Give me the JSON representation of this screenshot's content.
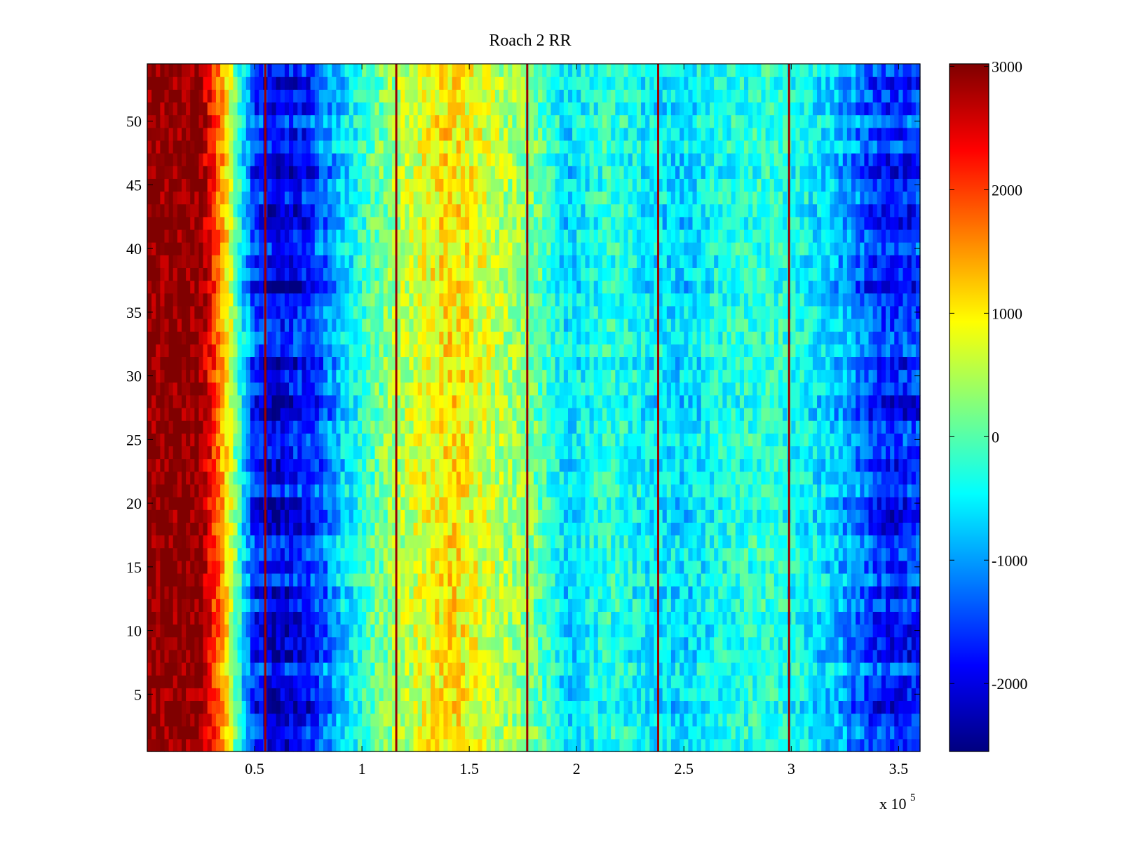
{
  "chart_data": {
    "type": "heatmap",
    "title": "Roach 2 RR",
    "xlabel": "",
    "ylabel": "",
    "x_exponent_label": "x 10",
    "x_exponent_power": "5",
    "xlim": [
      0,
      360000
    ],
    "ylim": [
      0.5,
      54.5
    ],
    "n_rows": 54,
    "x_ticks": [
      0.5,
      1,
      1.5,
      2,
      2.5,
      3,
      3.5
    ],
    "x_tick_labels": [
      "0.5",
      "1",
      "1.5",
      "2",
      "2.5",
      "3",
      "3.5"
    ],
    "x_tick_scale": 100000,
    "y_ticks": [
      5,
      10,
      15,
      20,
      25,
      30,
      35,
      40,
      45,
      50
    ],
    "y_tick_labels": [
      "5",
      "10",
      "15",
      "20",
      "25",
      "30",
      "35",
      "40",
      "45",
      "50"
    ],
    "colormap": "jet",
    "clim": [
      -2550,
      3020
    ],
    "colorbar_ticks": [
      3000,
      2000,
      1000,
      0,
      -1000,
      -2000
    ],
    "colorbar_tick_labels": [
      "3000",
      "2000",
      "1000",
      "0",
      "-1000",
      "-2000"
    ],
    "column_profile": {
      "x": [
        0,
        24000,
        28000,
        33000,
        38000,
        44000,
        50000,
        60000,
        75000,
        90000,
        100000,
        115000,
        130000,
        140000,
        150000,
        165000,
        180000,
        195000,
        215000,
        235000,
        250000,
        270000,
        290000,
        305000,
        320000,
        335000,
        345000,
        360000
      ],
      "values": [
        3020,
        3020,
        2500,
        1800,
        900,
        -500,
        -1500,
        -1900,
        -1600,
        -700,
        -200,
        400,
        800,
        1100,
        900,
        500,
        200,
        -600,
        -200,
        -500,
        -600,
        -300,
        -200,
        -400,
        -700,
        -1300,
        -1600,
        -1500
      ]
    },
    "vertical_lines_x": [
      55000,
      116000,
      177000,
      238000,
      299000
    ],
    "annotations": []
  }
}
